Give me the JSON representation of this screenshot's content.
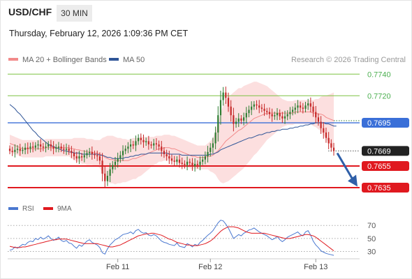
{
  "header": {
    "symbol": "USD/CHF",
    "timeframe": "30 MIN",
    "timestamp": "Thursday, February 12, 2026 1:09:36 PM CET"
  },
  "chart_data": {
    "type": "candlestick",
    "main": {
      "legend": [
        {
          "label": "MA 20 + Bollinger Bands",
          "color": "#f28a8a"
        },
        {
          "label": "MA 50",
          "color": "#2f5597"
        }
      ],
      "credit": "Research © 2026 Trading Central",
      "ylim": [
        0.7626,
        0.7746
      ],
      "levels": [
        {
          "label": "0.7740",
          "value": 0.774,
          "kind": "resistance"
        },
        {
          "label": "0.7720",
          "value": 0.772,
          "kind": "resistance"
        },
        {
          "label": "0.7695",
          "value": 0.7695,
          "kind": "pivot"
        },
        {
          "label": "0.7669",
          "value": 0.7669,
          "kind": "last"
        },
        {
          "label": "0.7655",
          "value": 0.7655,
          "kind": "support"
        },
        {
          "label": "0.7635",
          "value": 0.7635,
          "kind": "support"
        }
      ],
      "forecast_arrow": {
        "from": 0.7667,
        "to": 0.7636
      },
      "colors": {
        "up": "#2e7d32",
        "down": "#c62828",
        "support": "#e0191f",
        "resistance": "#7dc242",
        "pivot": "#3a6fd8",
        "ma50": "#2f5597",
        "ma20": "#f28a8a",
        "band": "#fbd9d9"
      },
      "closes": [
        0.7669,
        0.7668,
        0.767,
        0.7671,
        0.7669,
        0.767,
        0.7672,
        0.7671,
        0.7673,
        0.7672,
        0.7674,
        0.7675,
        0.7673,
        0.7672,
        0.7673,
        0.7675,
        0.7673,
        0.7671,
        0.7672,
        0.7673,
        0.7671,
        0.767,
        0.7671,
        0.7669,
        0.7667,
        0.7664,
        0.7662,
        0.7664,
        0.7663,
        0.7665,
        0.7667,
        0.7668,
        0.7666,
        0.7665,
        0.7664,
        0.766,
        0.7648,
        0.7641,
        0.7646,
        0.7652,
        0.7656,
        0.7659,
        0.7662,
        0.7665,
        0.7669,
        0.7671,
        0.7673,
        0.7675,
        0.7674,
        0.7678,
        0.7681,
        0.7679,
        0.7677,
        0.7678,
        0.7675,
        0.7674,
        0.7676,
        0.7675,
        0.7673,
        0.7669,
        0.7666,
        0.7664,
        0.7662,
        0.766,
        0.7659,
        0.7661,
        0.7658,
        0.7657,
        0.7656,
        0.7659,
        0.7658,
        0.7655,
        0.7657,
        0.7656,
        0.7659,
        0.7661,
        0.7664,
        0.7668,
        0.7672,
        0.7676,
        0.7686,
        0.7702,
        0.7716,
        0.7723,
        0.7718,
        0.771,
        0.7702,
        0.7694,
        0.7696,
        0.7699,
        0.7697,
        0.77,
        0.7704,
        0.7707,
        0.771,
        0.7712,
        0.7711,
        0.7709,
        0.7708,
        0.7706,
        0.7705,
        0.7703,
        0.7701,
        0.7702,
        0.7704,
        0.7701,
        0.7699,
        0.7701,
        0.7703,
        0.7705,
        0.7707,
        0.7709,
        0.7711,
        0.7709,
        0.7708,
        0.7711,
        0.7713,
        0.771,
        0.7705,
        0.77,
        0.7696,
        0.769,
        0.7686,
        0.7681,
        0.7676,
        0.7672,
        0.7669
      ],
      "ma20": [
        0.7676,
        0.7675,
        0.7674,
        0.7673,
        0.7672,
        0.7671,
        0.7671,
        0.7671,
        0.7671,
        0.7671,
        0.7671,
        0.7671,
        0.7671,
        0.7671,
        0.7672,
        0.7672,
        0.7672,
        0.7672,
        0.7672,
        0.7672,
        0.7672,
        0.7672,
        0.7672,
        0.7672,
        0.7671,
        0.7671,
        0.767,
        0.767,
        0.7669,
        0.7669,
        0.7668,
        0.7668,
        0.7668,
        0.7667,
        0.7667,
        0.7666,
        0.7665,
        0.7663,
        0.7662,
        0.7661,
        0.7661,
        0.766,
        0.766,
        0.766,
        0.766,
        0.766,
        0.766,
        0.7661,
        0.7662,
        0.7662,
        0.7663,
        0.7664,
        0.7665,
        0.7666,
        0.7667,
        0.7668,
        0.7669,
        0.767,
        0.7671,
        0.7671,
        0.7672,
        0.7672,
        0.7672,
        0.7671,
        0.7671,
        0.767,
        0.7669,
        0.7668,
        0.7667,
        0.7666,
        0.7665,
        0.7664,
        0.7664,
        0.7663,
        0.7663,
        0.7663,
        0.7663,
        0.7664,
        0.7664,
        0.7665,
        0.7667,
        0.7669,
        0.7672,
        0.7675,
        0.7678,
        0.768,
        0.7682,
        0.7684,
        0.7686,
        0.7688,
        0.7689,
        0.7691,
        0.7693,
        0.7695,
        0.7697,
        0.7699,
        0.77,
        0.7701,
        0.7702,
        0.7703,
        0.7704,
        0.7704,
        0.7704,
        0.7704,
        0.7704,
        0.7704,
        0.7704,
        0.7704,
        0.7704,
        0.7704,
        0.7704,
        0.7705,
        0.7705,
        0.7705,
        0.7705,
        0.7705,
        0.7705,
        0.7705,
        0.7704,
        0.7704,
        0.7703,
        0.7703,
        0.7702,
        0.77,
        0.7699,
        0.7698,
        0.7697
      ],
      "band_width": [
        0.0008,
        0.0008,
        0.0008,
        0.0008,
        0.0008,
        0.0008,
        0.0008,
        0.0008,
        0.0008,
        0.0008,
        0.0008,
        0.0008,
        0.0008,
        0.0008,
        0.0008,
        0.0008,
        0.0008,
        0.0008,
        0.0008,
        0.0008,
        0.0008,
        0.0008,
        0.0008,
        0.0008,
        0.0009,
        0.001,
        0.0011,
        0.0011,
        0.0012,
        0.0012,
        0.0012,
        0.0012,
        0.0012,
        0.0012,
        0.0012,
        0.0013,
        0.0016,
        0.0019,
        0.0021,
        0.0022,
        0.0022,
        0.0022,
        0.0021,
        0.0021,
        0.002,
        0.002,
        0.0019,
        0.0019,
        0.0019,
        0.0019,
        0.0018,
        0.0018,
        0.0017,
        0.0016,
        0.0015,
        0.0014,
        0.0013,
        0.0013,
        0.0012,
        0.0012,
        0.0012,
        0.0012,
        0.0012,
        0.0012,
        0.0012,
        0.0012,
        0.0012,
        0.0012,
        0.0012,
        0.0012,
        0.0012,
        0.0012,
        0.0011,
        0.0011,
        0.0011,
        0.0011,
        0.0011,
        0.0012,
        0.0014,
        0.0016,
        0.002,
        0.0026,
        0.0032,
        0.0036,
        0.0038,
        0.0039,
        0.0039,
        0.0039,
        0.0039,
        0.0039,
        0.0038,
        0.0038,
        0.0037,
        0.0036,
        0.0035,
        0.0034,
        0.0033,
        0.0031,
        0.0029,
        0.0027,
        0.0025,
        0.0023,
        0.0021,
        0.0019,
        0.0017,
        0.0015,
        0.0013,
        0.0012,
        0.0011,
        0.0011,
        0.0011,
        0.0011,
        0.0011,
        0.0011,
        0.0011,
        0.0011,
        0.0011,
        0.0011,
        0.0012,
        0.0013,
        0.0014,
        0.0016,
        0.0018,
        0.002,
        0.0022,
        0.0024,
        0.0026
      ],
      "ma50": [
        0.7712,
        0.771,
        0.7708,
        0.7705,
        0.7703,
        0.77,
        0.7697,
        0.7694,
        0.7691,
        0.7688,
        0.7686,
        0.7683,
        0.7681,
        0.7679,
        0.7677,
        0.7675,
        0.7674,
        0.7673,
        0.7672,
        0.7671,
        0.767,
        0.7669,
        0.7669,
        0.7668,
        0.7668,
        0.7667,
        0.7667,
        0.7667,
        0.7666,
        0.7666,
        0.7666,
        0.7666,
        0.7666,
        0.7666,
        0.7666,
        0.7665,
        0.7665,
        0.7664,
        0.7663,
        0.7663,
        0.7662,
        0.7662,
        0.7662,
        0.7662,
        0.7662,
        0.7663,
        0.7663,
        0.7664,
        0.7664,
        0.7665,
        0.7665,
        0.7666,
        0.7666,
        0.7666,
        0.7667,
        0.7667,
        0.7667,
        0.7667,
        0.7667,
        0.7667,
        0.7667,
        0.7667,
        0.7666,
        0.7666,
        0.7666,
        0.7666,
        0.7666,
        0.7665,
        0.7665,
        0.7665,
        0.7665,
        0.7665,
        0.7665,
        0.7665,
        0.7665,
        0.7665,
        0.7665,
        0.7665,
        0.7666,
        0.7666,
        0.7667,
        0.7668,
        0.767,
        0.7671,
        0.7672,
        0.7673,
        0.7674,
        0.7675,
        0.7676,
        0.7677,
        0.7678,
        0.7679,
        0.768,
        0.7681,
        0.7681,
        0.7682,
        0.7683,
        0.7684,
        0.7684,
        0.7685,
        0.7686,
        0.7686,
        0.7687,
        0.7687,
        0.7688,
        0.7688,
        0.7689,
        0.7689,
        0.7689,
        0.769,
        0.769,
        0.7691,
        0.7691,
        0.7692,
        0.7692,
        0.7693,
        0.7693,
        0.7694,
        0.7694,
        0.7695,
        0.7695,
        0.7695,
        0.7695,
        0.7694,
        0.7694,
        0.7693,
        0.7692,
        0.7692
      ]
    },
    "rsi": {
      "legend": [
        {
          "label": "RSI",
          "color": "#4a78d0"
        },
        {
          "label": "9MA",
          "color": "#e0191f"
        }
      ],
      "ylim": [
        22,
        82
      ],
      "levels": [
        {
          "label": "70",
          "value": 70
        },
        {
          "label": "50",
          "value": 50
        },
        {
          "label": "30",
          "value": 30
        }
      ],
      "values": [
        32,
        33,
        37,
        35,
        38,
        41,
        40,
        44,
        46,
        45,
        50,
        48,
        52,
        49,
        51,
        54,
        50,
        47,
        49,
        52,
        47,
        45,
        47,
        43,
        42,
        38,
        35,
        40,
        38,
        42,
        46,
        48,
        44,
        42,
        40,
        36,
        28,
        26,
        34,
        40,
        44,
        48,
        50,
        53,
        56,
        57,
        58,
        60,
        57,
        62,
        64,
        60,
        58,
        59,
        55,
        54,
        56,
        54,
        50,
        46,
        44,
        43,
        41,
        40,
        39,
        43,
        38,
        37,
        36,
        42,
        40,
        37,
        41,
        39,
        44,
        47,
        51,
        55,
        58,
        62,
        68,
        74,
        78,
        77,
        72,
        66,
        58,
        50,
        53,
        56,
        54,
        58,
        60,
        63,
        64,
        66,
        63,
        60,
        58,
        56,
        54,
        51,
        48,
        50,
        53,
        48,
        45,
        48,
        52,
        54,
        56,
        58,
        60,
        56,
        54,
        60,
        62,
        55,
        46,
        40,
        36,
        31,
        29,
        27,
        26,
        25,
        24
      ],
      "ma": [
        38,
        37,
        36,
        36,
        36,
        37,
        37,
        38,
        39,
        40,
        41,
        42,
        43,
        44,
        45,
        46,
        47,
        48,
        48,
        49,
        49,
        49,
        49,
        48,
        47,
        46,
        45,
        44,
        43,
        42,
        42,
        42,
        42,
        42,
        42,
        41,
        40,
        39,
        38,
        37,
        37,
        38,
        39,
        40,
        42,
        44,
        46,
        48,
        50,
        52,
        54,
        55,
        56,
        57,
        57,
        58,
        58,
        57,
        56,
        55,
        53,
        51,
        49,
        48,
        46,
        44,
        43,
        42,
        41,
        40,
        40,
        39,
        39,
        39,
        40,
        41,
        42,
        44,
        46,
        49,
        53,
        57,
        61,
        64,
        66,
        68,
        68,
        68,
        67,
        66,
        64,
        62,
        60,
        59,
        58,
        58,
        58,
        58,
        58,
        58,
        57,
        56,
        55,
        54,
        53,
        52,
        51,
        50,
        50,
        50,
        51,
        52,
        53,
        54,
        55,
        56,
        56,
        55,
        54,
        52,
        49,
        46,
        43,
        40,
        37,
        34,
        31
      ],
      "colors": {
        "rsi": "#4a78d0",
        "ma": "#e0191f"
      }
    },
    "x_ticks": [
      {
        "label": "Feb 11",
        "index": 42
      },
      {
        "label": "Feb 12",
        "index": 78
      },
      {
        "label": "Feb 13",
        "index": 119
      }
    ]
  }
}
